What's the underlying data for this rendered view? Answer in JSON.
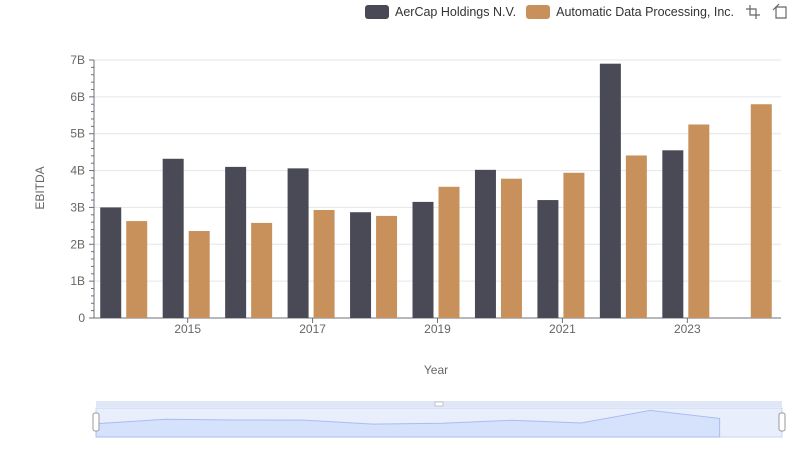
{
  "legend": {
    "series_a": "AerCap Holdings N.V.",
    "series_b": "Automatic Data Processing, Inc."
  },
  "toolbar": {
    "zoom_icon": "zoom-select-icon",
    "restore_icon": "restore-icon"
  },
  "colors": {
    "series_a": "#4a4a56",
    "series_b": "#c8915c",
    "grid": "#e3e6ee",
    "axis": "#6e7079",
    "slider_fill": "#d6e2fb",
    "slider_line": "#a8bdf0"
  },
  "chart_data": {
    "type": "bar",
    "title": "",
    "xlabel": "Year",
    "ylabel": "EBITDA",
    "categories": [
      "2014",
      "2015",
      "2016",
      "2017",
      "2018",
      "2019",
      "2020",
      "2021",
      "2022",
      "2023",
      "2024"
    ],
    "x_tick_labels": [
      "2015",
      "2017",
      "2019",
      "2021",
      "2023"
    ],
    "y_tick_labels": [
      "0",
      "1B",
      "2B",
      "3B",
      "4B",
      "5B",
      "6B",
      "7B"
    ],
    "ylim": [
      0,
      7000000000
    ],
    "series": [
      {
        "name": "AerCap Holdings N.V.",
        "values": [
          3000000000,
          4320000000,
          4100000000,
          4060000000,
          2870000000,
          3150000000,
          4020000000,
          3200000000,
          6900000000,
          4550000000,
          null
        ]
      },
      {
        "name": "Automatic Data Processing, Inc.",
        "values": [
          2630000000,
          2360000000,
          2580000000,
          2930000000,
          2770000000,
          3560000000,
          3780000000,
          3940000000,
          4410000000,
          5250000000,
          5800000000
        ]
      }
    ]
  }
}
